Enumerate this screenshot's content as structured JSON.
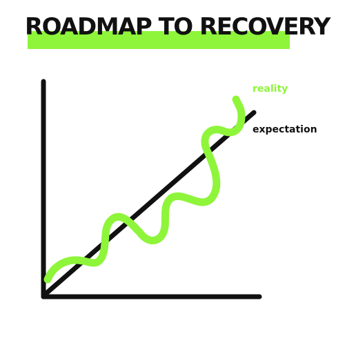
{
  "title": "ROADMAP TO RECOVERY",
  "labels": {
    "reality": "reality",
    "expectation": "expectation"
  },
  "colors": {
    "accent_green": "#8ef53a",
    "ink": "#111111",
    "background": "#ffffff"
  }
}
